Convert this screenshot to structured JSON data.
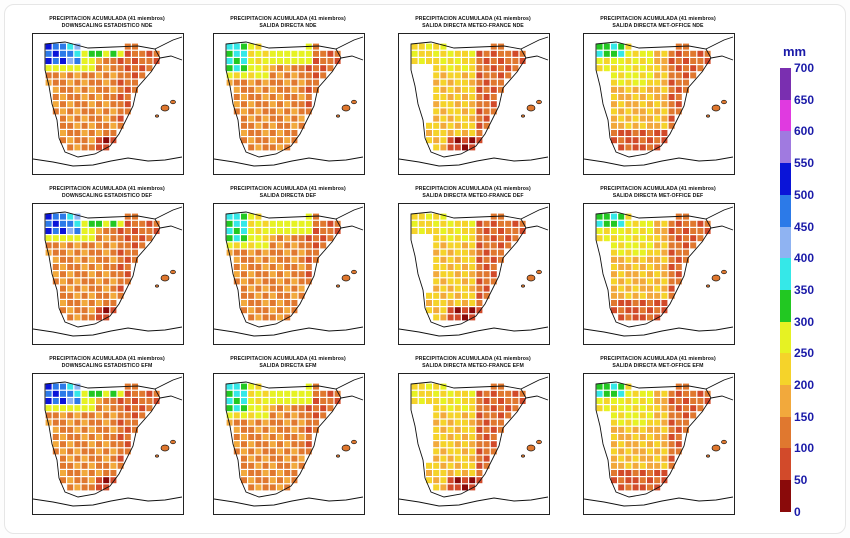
{
  "figure": {
    "unit_label": "mm",
    "colorbar": {
      "ticks": [
        "700",
        "650",
        "600",
        "550",
        "500",
        "450",
        "400",
        "350",
        "300",
        "250",
        "200",
        "150",
        "100",
        "50",
        "0"
      ],
      "colors": [
        "#7a2fb0",
        "#e03ae0",
        "#a07ae0",
        "#0a14d8",
        "#2c7ae8",
        "#8fb3f2",
        "#35e8e8",
        "#22c822",
        "#e6f223",
        "#f5d32a",
        "#f2a93c",
        "#e0782f",
        "#d24a2a",
        "#8a0a0a"
      ]
    },
    "panels": [
      {
        "title_line1": "PRECIPITACION ACUMULADA (41 miembros)",
        "title_line2": "DOWNSCALING ESTADISTICO NDE",
        "pattern": "ds"
      },
      {
        "title_line1": "PRECIPITACION ACUMULADA (41 miembros)",
        "title_line2": "SALIDA DIRECTA NDE",
        "pattern": "sd"
      },
      {
        "title_line1": "PRECIPITACION ACUMULADA (41 miembros)",
        "title_line2": "SALIDA DIRECTA METEO-FRANCE NDE",
        "pattern": "mf"
      },
      {
        "title_line1": "PRECIPITACION ACUMULADA (41 miembros)",
        "title_line2": "SALIDA DIRECTA MET-OFFICE NDE",
        "pattern": "mo"
      },
      {
        "title_line1": "PRECIPITACION ACUMULADA (41 miembros)",
        "title_line2": "DOWNSCALING ESTADISTICO DEF",
        "pattern": "ds"
      },
      {
        "title_line1": "PRECIPITACION ACUMULADA (41 miembros)",
        "title_line2": "SALIDA DIRECTA DEF",
        "pattern": "sd"
      },
      {
        "title_line1": "PRECIPITACION ACUMULADA (41 miembros)",
        "title_line2": "SALIDA DIRECTA METEO-FRANCE DEF",
        "pattern": "mf"
      },
      {
        "title_line1": "PRECIPITACION ACUMULADA (41 miembros)",
        "title_line2": "SALIDA DIRECTA MET-OFFICE DEF",
        "pattern": "mo"
      },
      {
        "title_line1": "PRECIPITACION ACUMULADA (41 miembros)",
        "title_line2": "DOWNSCALING ESTADISTICO EFM",
        "pattern": "ds"
      },
      {
        "title_line1": "PRECIPITACION ACUMULADA (41 miembros)",
        "title_line2": "SALIDA DIRECTA EFM",
        "pattern": "sd"
      },
      {
        "title_line1": "PRECIPITACION ACUMULADA (41 miembros)",
        "title_line2": "SALIDA DIRECTA METEO-FRANCE EFM",
        "pattern": "mf"
      },
      {
        "title_line1": "PRECIPITACION ACUMULADA (41 miembros)",
        "title_line2": "SALIDA DIRECTA MET-OFFICE EFM",
        "pattern": "mo"
      }
    ]
  }
}
